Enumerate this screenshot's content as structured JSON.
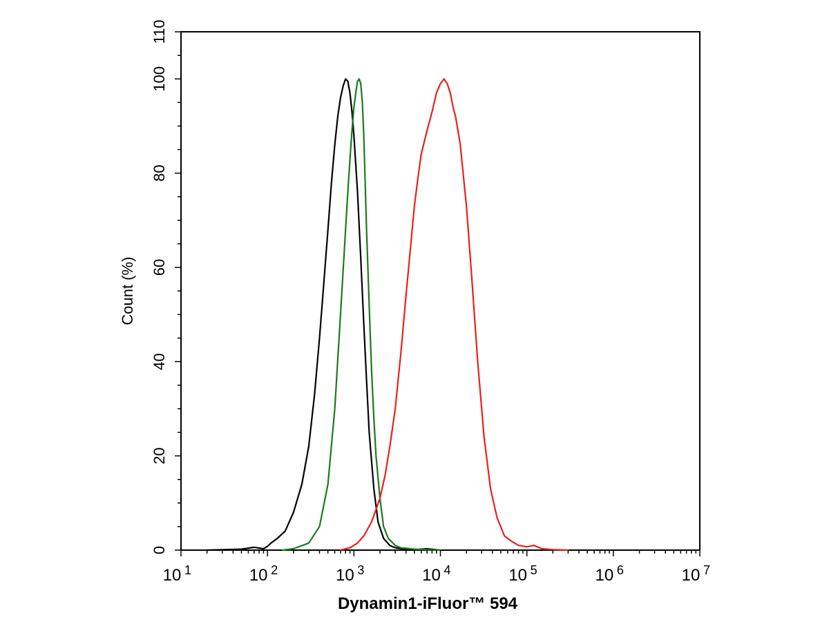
{
  "chart_data": {
    "type": "line",
    "title": "",
    "xlabel": "Dynamin1-iFluor™ 594",
    "ylabel": "Count  (%)",
    "xscale": "log",
    "xlim": [
      10,
      10000000
    ],
    "ylim": [
      0,
      110
    ],
    "grid": false,
    "legend": "none",
    "x_ticks": [
      {
        "base": "10",
        "exp": "1",
        "value": 10
      },
      {
        "base": "10",
        "exp": "2",
        "value": 100
      },
      {
        "base": "10",
        "exp": "3",
        "value": 1000
      },
      {
        "base": "10",
        "exp": "4",
        "value": 10000
      },
      {
        "base": "10",
        "exp": "5",
        "value": 100000
      },
      {
        "base": "10",
        "exp": "6",
        "value": 1000000
      },
      {
        "base": "10",
        "exp": "7",
        "value": 10000000
      }
    ],
    "y_ticks": [
      "0",
      "20",
      "40",
      "60",
      "80",
      "100",
      "110"
    ],
    "y_tick_values": [
      0,
      20,
      40,
      60,
      80,
      100,
      110
    ],
    "series": [
      {
        "color": "#000000",
        "x": [
          20,
          50,
          70,
          90,
          100,
          110,
          130,
          160,
          200,
          250,
          300,
          350,
          400,
          450,
          500,
          550,
          600,
          650,
          700,
          750,
          800,
          850,
          900,
          950,
          1000,
          1100,
          1200,
          1300,
          1400,
          1500,
          1700,
          1900,
          2200,
          2600,
          3000,
          4000,
          5000,
          7000,
          10000
        ],
        "y": [
          0,
          0.2,
          0.6,
          0.3,
          0.8,
          1.5,
          2.5,
          4,
          8,
          14,
          22,
          33,
          45,
          57,
          68,
          78,
          86,
          92,
          96,
          98.5,
          100,
          99.5,
          97,
          93,
          88,
          76,
          62,
          48,
          36,
          25,
          13,
          6,
          2.5,
          1,
          0.5,
          0.2,
          0.1,
          0.3,
          0
        ]
      },
      {
        "color": "#1a7a1a",
        "x": [
          150,
          200,
          300,
          400,
          500,
          600,
          700,
          800,
          850,
          900,
          950,
          1000,
          1050,
          1100,
          1150,
          1200,
          1250,
          1300,
          1350,
          1400,
          1500,
          1600,
          1700,
          1800,
          2000,
          2200,
          2500,
          3000,
          3500,
          5000,
          10000
        ],
        "y": [
          0,
          0.3,
          1.5,
          5,
          14,
          30,
          50,
          68,
          76,
          83,
          89,
          94,
          97,
          99.5,
          100,
          99,
          95,
          88,
          78,
          68,
          52,
          38,
          28,
          20,
          11,
          5,
          2.5,
          1,
          0.5,
          0.2,
          0
        ]
      },
      {
        "color": "#e8201a",
        "x": [
          700,
          900,
          1100,
          1300,
          1600,
          2000,
          2300,
          2600,
          3000,
          3500,
          4000,
          4500,
          5000,
          5500,
          6000,
          7000,
          8000,
          9000,
          10000,
          11000,
          12000,
          13000,
          14000,
          15000,
          17000,
          20000,
          23000,
          27000,
          32000,
          38000,
          45000,
          55000,
          65000,
          80000,
          100000,
          120000,
          150000,
          200000,
          300000
        ],
        "y": [
          0,
          0.5,
          1.5,
          3,
          6,
          11,
          16,
          22,
          30,
          42,
          54,
          64,
          73,
          79,
          84,
          89,
          93,
          97,
          99,
          100,
          99,
          97,
          94,
          92,
          86,
          73,
          58,
          40,
          24,
          13,
          7,
          3,
          2,
          1,
          0.7,
          1,
          0.3,
          0.1,
          0
        ]
      }
    ]
  }
}
